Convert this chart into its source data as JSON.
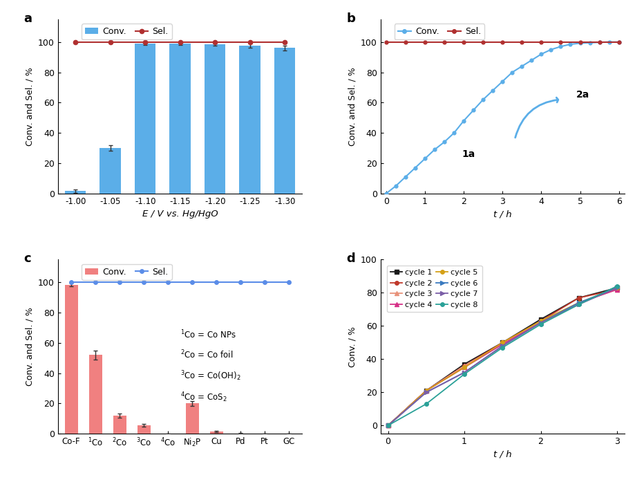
{
  "panel_a": {
    "bar_x": [
      -1.0,
      -1.05,
      -1.1,
      -1.15,
      -1.2,
      -1.25,
      -1.3
    ],
    "bar_conv": [
      1.5,
      30,
      99,
      99,
      98.5,
      97.5,
      96
    ],
    "bar_err": [
      1.0,
      2.0,
      1.0,
      0.8,
      0.8,
      1.5,
      1.5
    ],
    "sel_x": [
      -1.0,
      -1.05,
      -1.1,
      -1.15,
      -1.2,
      -1.25,
      -1.3
    ],
    "sel_y": [
      100,
      100,
      100,
      100,
      100,
      100,
      100
    ],
    "bar_color": "#5baee8",
    "sel_color": "#b03030",
    "xlabel": "E / V vs. Hg/HgO",
    "ylabel": "Conv. and Sel. / %",
    "xlim": [
      -1.325,
      -0.975
    ],
    "ylim": [
      0,
      115
    ],
    "xticks": [
      -1.0,
      -1.05,
      -1.1,
      -1.15,
      -1.2,
      -1.25,
      -1.3
    ],
    "yticks": [
      0,
      20,
      40,
      60,
      80,
      100
    ],
    "label": "a"
  },
  "panel_b": {
    "conv_t": [
      0,
      0.25,
      0.5,
      0.75,
      1.0,
      1.25,
      1.5,
      1.75,
      2.0,
      2.25,
      2.5,
      2.75,
      3.0,
      3.25,
      3.5,
      3.75,
      4.0,
      4.25,
      4.5,
      4.75,
      5.0,
      5.25,
      5.5,
      5.75,
      6.0
    ],
    "conv_y": [
      0,
      5,
      11,
      17,
      23,
      29,
      34,
      40,
      48,
      55,
      62,
      68,
      74,
      80,
      84,
      88,
      92,
      95,
      97,
      98.5,
      99.2,
      99.5,
      99.8,
      100,
      100
    ],
    "sel_t": [
      0,
      0.5,
      1.0,
      1.5,
      2.0,
      2.5,
      3.0,
      3.5,
      4.0,
      4.5,
      5.0,
      5.5,
      6.0
    ],
    "sel_y": [
      100,
      100,
      100,
      100,
      100,
      100,
      100,
      100,
      100,
      100,
      100,
      100,
      100
    ],
    "conv_color": "#5baee8",
    "sel_color": "#b03030",
    "xlabel": "t / h",
    "ylabel": "Conv. and Sel. / %",
    "xlim": [
      -0.15,
      6.15
    ],
    "ylim": [
      0,
      115
    ],
    "xticks": [
      0,
      1,
      2,
      3,
      4,
      5,
      6
    ],
    "yticks": [
      0,
      20,
      40,
      60,
      80,
      100
    ],
    "label": "b"
  },
  "panel_c": {
    "categories": [
      "Co-F",
      "$^1$Co",
      "$^2$Co",
      "$^3$Co",
      "$^4$Co",
      "Ni$_2$P",
      "Cu",
      "Pd",
      "Pt",
      "GC"
    ],
    "conv": [
      98.5,
      52,
      12,
      5.5,
      0,
      20,
      1.5,
      0.3,
      0.1,
      0
    ],
    "err": [
      1.0,
      3.0,
      1.5,
      1.0,
      0,
      1.5,
      0.5,
      0.2,
      0,
      0
    ],
    "sel": [
      100,
      100,
      100,
      100,
      100,
      100,
      100,
      100,
      100,
      100
    ],
    "bar_color": "#f08080",
    "sel_color": "#5b8de8",
    "xlabel": "",
    "ylabel": "Conv. and Sel. / %",
    "ylim": [
      0,
      115
    ],
    "yticks": [
      0,
      20,
      40,
      60,
      80,
      100
    ],
    "label": "c"
  },
  "panel_d": {
    "cycles": [
      1,
      2,
      3,
      4,
      5,
      6,
      7,
      8
    ],
    "t": [
      0,
      0.5,
      1.0,
      1.5,
      2.0,
      2.5,
      3.0
    ],
    "conv_data": [
      [
        0,
        21,
        37,
        50,
        64,
        77,
        83
      ],
      [
        0,
        21,
        36,
        50,
        63,
        77,
        82
      ],
      [
        0,
        21,
        36,
        49,
        63,
        74,
        82
      ],
      [
        0,
        21,
        35,
        49,
        62,
        74,
        82
      ],
      [
        0,
        21,
        35,
        50,
        63,
        74,
        83
      ],
      [
        0,
        20,
        32,
        48,
        62,
        74,
        83
      ],
      [
        0,
        20,
        32,
        48,
        62,
        73,
        83
      ],
      [
        0,
        13,
        31,
        47,
        61,
        73,
        84
      ]
    ],
    "colors": [
      "#1a1a1a",
      "#c0392b",
      "#e8927a",
      "#d63087",
      "#d4a017",
      "#3a7abf",
      "#7b5ea7",
      "#2aa198"
    ],
    "markers": [
      "s",
      "o",
      "^",
      "^",
      "o",
      ">",
      ">",
      "o"
    ],
    "xlabel": "t / h",
    "ylabel": "Conv. / %",
    "xlim": [
      -0.1,
      3.1
    ],
    "ylim": [
      -5,
      100
    ],
    "xticks": [
      0,
      1,
      2,
      3
    ],
    "yticks": [
      0,
      20,
      40,
      60,
      80,
      100
    ],
    "label": "d"
  }
}
